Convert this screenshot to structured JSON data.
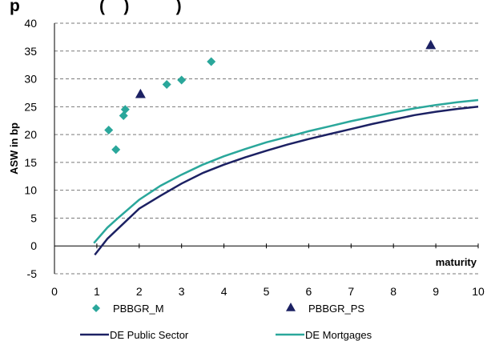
{
  "title_fragment": "p                 (    )          )",
  "chart_data": {
    "type": "scatter",
    "ylabel": "ASW in bp",
    "xlabel": "maturity",
    "xlim": [
      0,
      10
    ],
    "ylim": [
      -5,
      40
    ],
    "x_ticks": [
      "0",
      "1",
      "2",
      "3",
      "4",
      "5",
      "6",
      "7",
      "8",
      "9",
      "10"
    ],
    "y_ticks": [
      "-5",
      "0",
      "5",
      "10",
      "15",
      "20",
      "25",
      "30",
      "35",
      "40"
    ],
    "grid": "horizontal dashed",
    "legend_position": "bottom",
    "colors": {
      "teal": "#2aa79b",
      "navy": "#1c2163"
    },
    "series": [
      {
        "name": "PBBGR_M",
        "kind": "markers",
        "marker": "diamond",
        "color": "#2aa79b",
        "points": [
          [
            1.28,
            20.8
          ],
          [
            1.45,
            17.3
          ],
          [
            1.63,
            23.4
          ],
          [
            1.67,
            24.5
          ],
          [
            2.65,
            29.0
          ],
          [
            3.0,
            29.8
          ],
          [
            3.7,
            33.1
          ]
        ]
      },
      {
        "name": "PBBGR_PS",
        "kind": "markers",
        "marker": "triangle",
        "color": "#1c2163",
        "points": [
          [
            2.03,
            27.3
          ],
          [
            8.88,
            36.1
          ]
        ]
      },
      {
        "name": "DE Public Sector",
        "kind": "line",
        "color": "#1c2163",
        "points": [
          [
            0.95,
            -1.6
          ],
          [
            1.25,
            1.3
          ],
          [
            1.5,
            3.1
          ],
          [
            2.0,
            6.7
          ],
          [
            2.5,
            9.0
          ],
          [
            3.0,
            11.2
          ],
          [
            3.5,
            13.1
          ],
          [
            4.0,
            14.6
          ],
          [
            4.5,
            15.9
          ],
          [
            5.0,
            17.1
          ],
          [
            5.5,
            18.2
          ],
          [
            6.0,
            19.2
          ],
          [
            6.5,
            20.1
          ],
          [
            7.0,
            21.0
          ],
          [
            7.5,
            21.9
          ],
          [
            8.0,
            22.7
          ],
          [
            8.5,
            23.5
          ],
          [
            9.0,
            24.1
          ],
          [
            9.5,
            24.6
          ],
          [
            10.0,
            25.0
          ]
        ]
      },
      {
        "name": "DE Mortgages",
        "kind": "line",
        "color": "#2aa79b",
        "points": [
          [
            0.93,
            0.5
          ],
          [
            1.25,
            3.3
          ],
          [
            1.5,
            5.0
          ],
          [
            2.0,
            8.3
          ],
          [
            2.5,
            10.8
          ],
          [
            3.0,
            12.8
          ],
          [
            3.5,
            14.6
          ],
          [
            4.0,
            16.1
          ],
          [
            4.5,
            17.4
          ],
          [
            5.0,
            18.6
          ],
          [
            5.5,
            19.6
          ],
          [
            6.0,
            20.6
          ],
          [
            6.5,
            21.5
          ],
          [
            7.0,
            22.4
          ],
          [
            7.5,
            23.2
          ],
          [
            8.0,
            24.0
          ],
          [
            8.5,
            24.7
          ],
          [
            9.0,
            25.3
          ],
          [
            9.5,
            25.8
          ],
          [
            10.0,
            26.2
          ]
        ]
      }
    ]
  }
}
